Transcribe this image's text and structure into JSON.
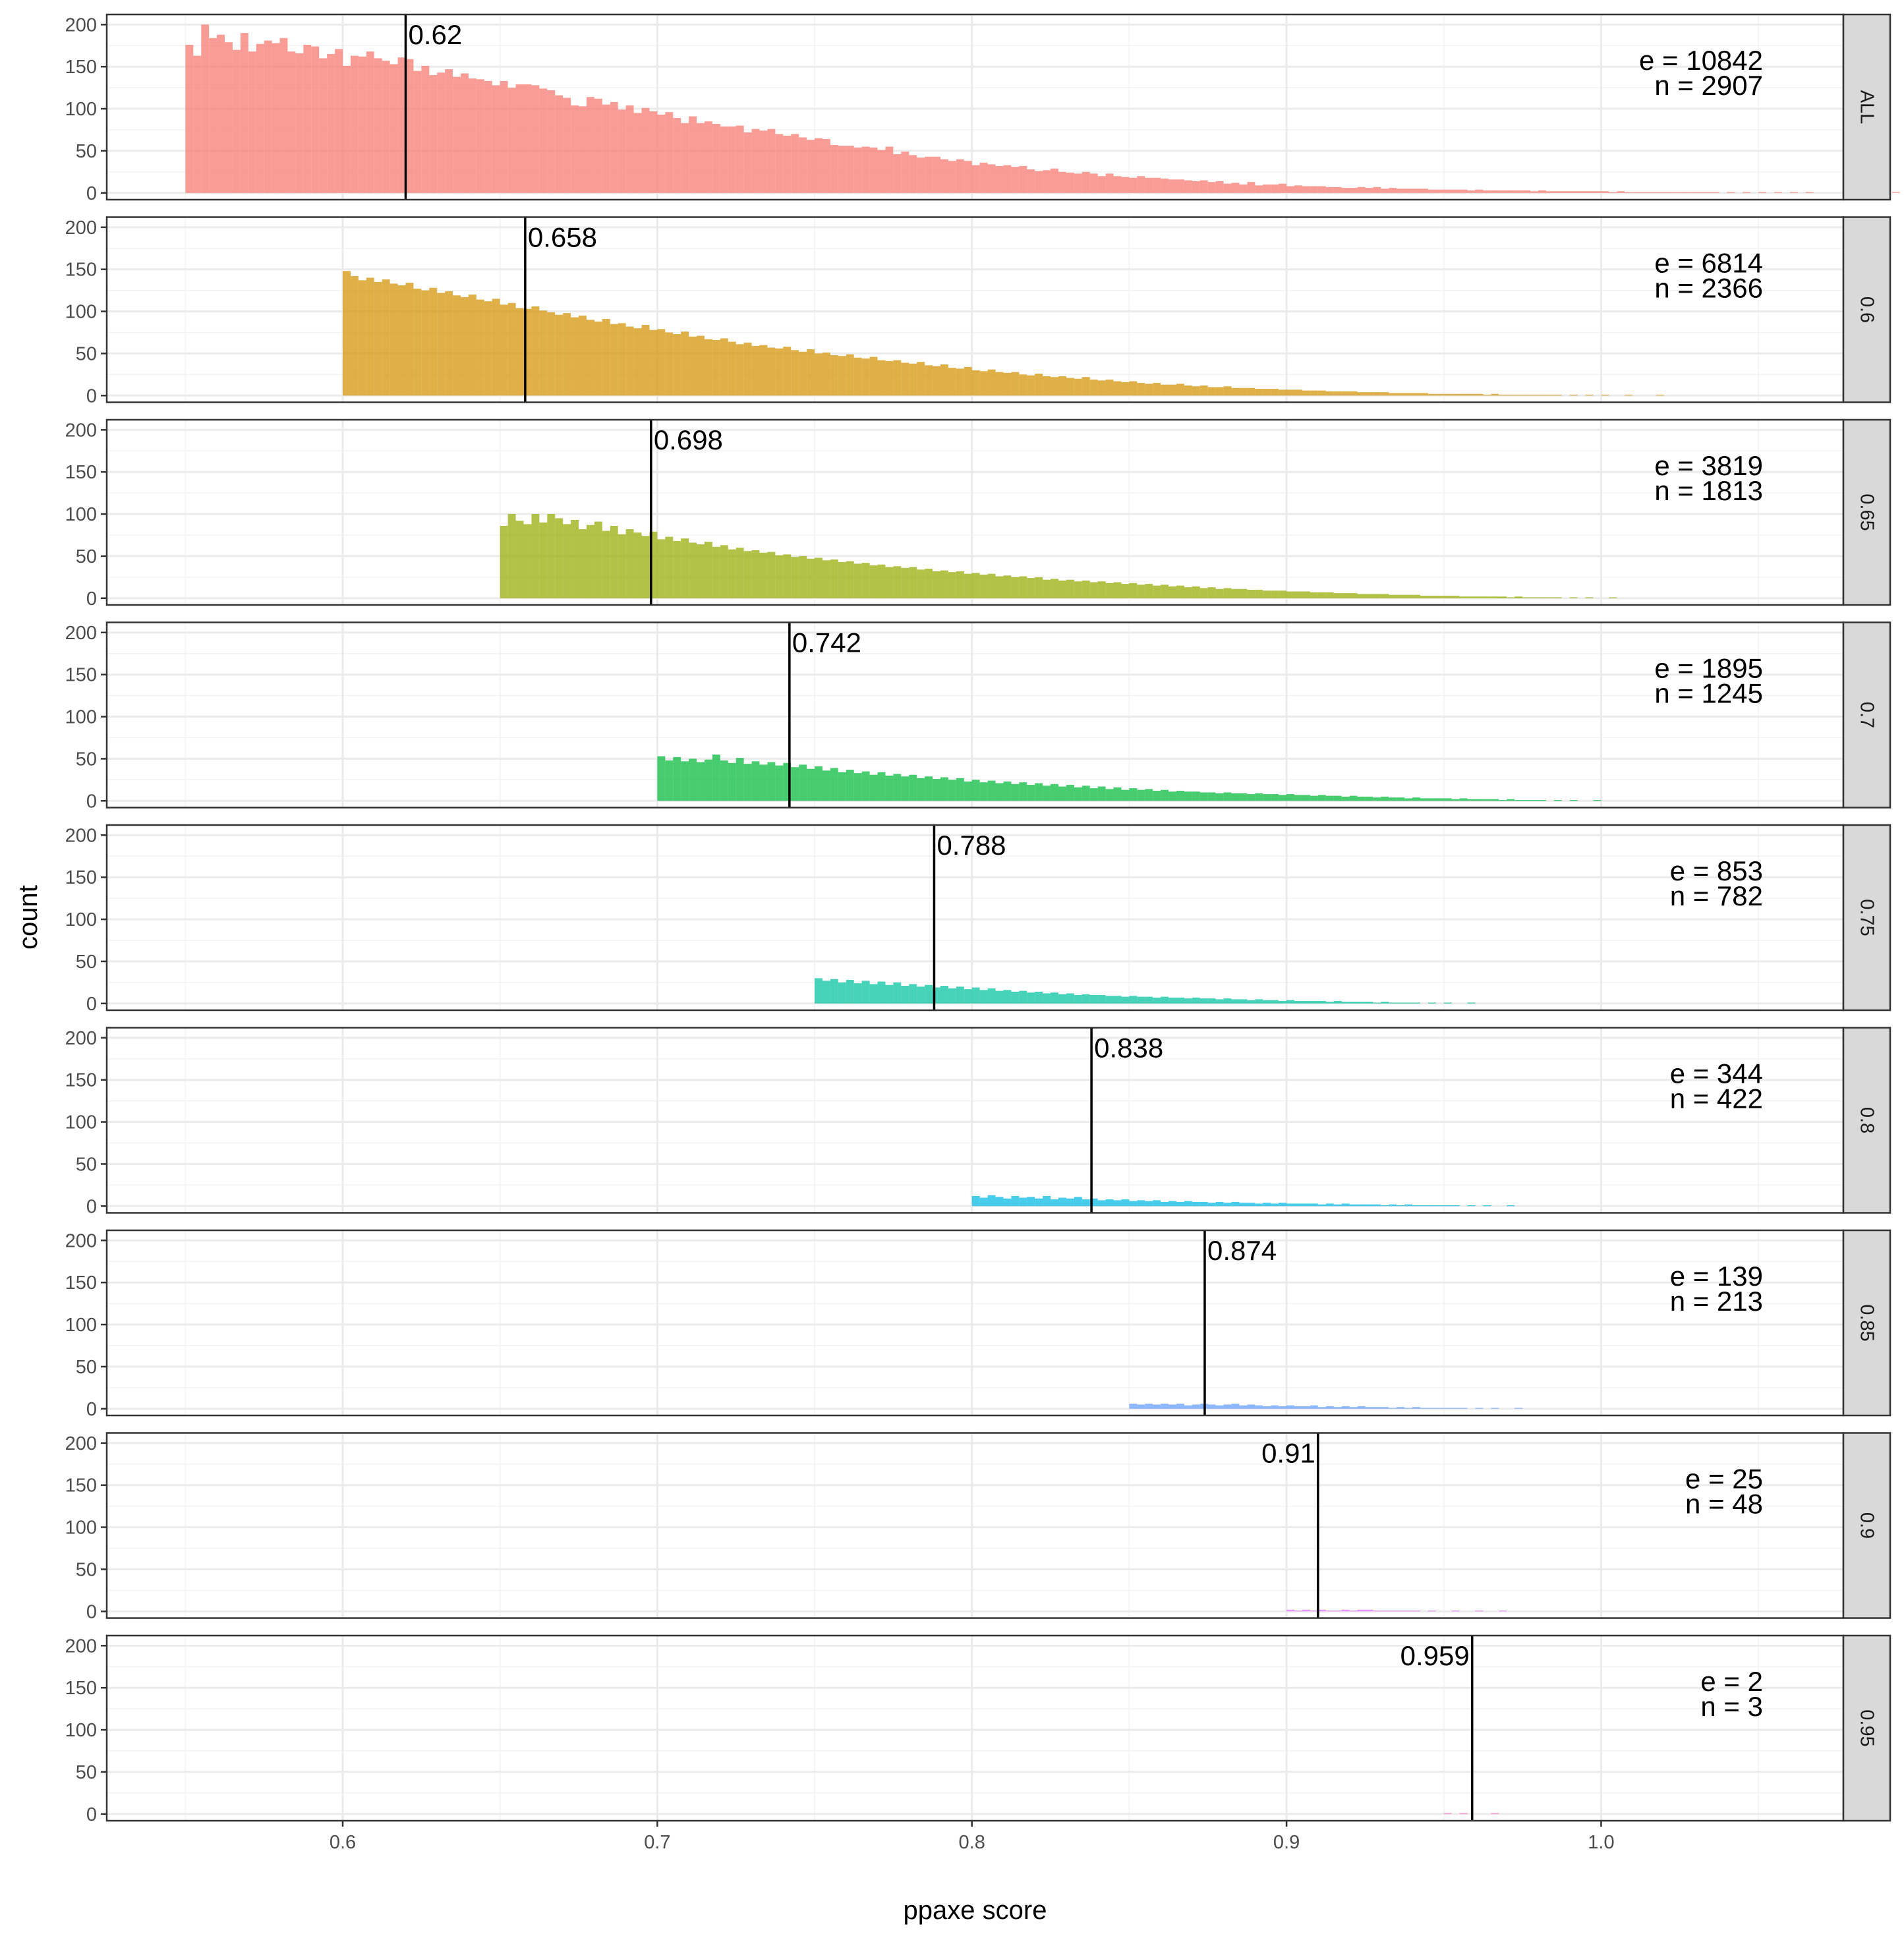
{
  "chart_data": {
    "type": "bar",
    "xlabel": "ppaxe score",
    "ylabel": "count",
    "xlim": [
      0.525,
      1.077
    ],
    "ylim": [
      -8,
      212
    ],
    "x_ticks": [
      "0.6",
      "0.7",
      "0.8",
      "0.9",
      "1.0"
    ],
    "x_tick_values": [
      0.6,
      0.7,
      0.8,
      0.9,
      1.0
    ],
    "y_ticks": [
      "0",
      "50",
      "100",
      "150",
      "200"
    ],
    "y_tick_values": [
      0,
      50,
      100,
      150,
      200
    ],
    "bin_width": 0.0025,
    "grid": true,
    "facet": "rows",
    "panels": [
      {
        "label": "ALL",
        "color": "#F8766D",
        "threshold": 0.55,
        "median": 0.62,
        "median_label": "0.62",
        "median_label_side": "right",
        "e_label": "e = 10842",
        "n_label": "n =  2907",
        "counts": [
          176,
          163,
          200,
          184,
          188,
          179,
          170,
          190,
          168,
          177,
          181,
          178,
          184,
          168,
          166,
          176,
          174,
          160,
          165,
          171,
          151,
          163,
          162,
          168,
          160,
          157,
          153,
          161,
          159,
          145,
          151,
          140,
          143,
          147,
          138,
          142,
          136,
          135,
          133,
          128,
          133,
          125,
          129,
          129,
          128,
          124,
          122,
          116,
          113,
          104,
          103,
          114,
          112,
          105,
          108,
          99,
          104,
          95,
          101,
          97,
          93,
          96,
          89,
          83,
          91,
          83,
          85,
          82,
          79,
          79,
          80,
          72,
          76,
          74,
          76,
          70,
          68,
          70,
          66,
          63,
          65,
          64,
          57,
          56,
          56,
          54,
          55,
          54,
          51,
          55,
          46,
          49,
          45,
          42,
          43,
          43,
          40,
          38,
          40,
          38,
          33,
          36,
          34,
          32,
          33,
          31,
          32,
          28,
          26,
          27,
          29,
          25,
          24,
          23,
          25,
          23,
          20,
          23,
          20,
          19,
          18,
          20,
          18,
          18,
          17,
          16,
          16,
          15,
          14,
          15,
          13,
          14,
          11,
          12,
          10,
          13,
          9,
          10,
          10,
          11,
          8,
          9,
          8,
          8,
          8,
          7,
          7,
          6,
          6,
          7,
          6,
          7,
          5,
          6,
          5,
          5,
          5,
          5,
          4,
          4,
          4,
          4,
          4,
          3,
          4,
          3,
          3,
          3,
          3,
          3,
          3,
          2,
          3,
          2,
          2,
          2,
          2,
          2,
          2,
          2,
          2,
          1,
          2,
          1,
          1,
          1,
          1,
          1,
          1,
          1,
          1,
          1,
          1,
          1,
          1,
          0,
          1,
          0,
          1,
          0,
          1,
          0,
          1,
          0,
          1,
          0,
          1,
          0,
          0,
          0,
          0,
          1,
          0,
          0,
          0,
          0,
          0,
          1
        ]
      },
      {
        "label": "0.6",
        "color": "#D39200",
        "threshold": 0.6,
        "median": 0.658,
        "median_label": "0.658",
        "median_label_side": "right",
        "e_label": "e = 6814",
        "n_label": "n =  2366",
        "counts": [
          148,
          142,
          137,
          140,
          135,
          138,
          133,
          131,
          134,
          127,
          125,
          128,
          122,
          124,
          119,
          117,
          120,
          114,
          112,
          115,
          108,
          110,
          104,
          103,
          106,
          101,
          99,
          96,
          98,
          93,
          95,
          90,
          88,
          91,
          85,
          86,
          82,
          80,
          84,
          78,
          79,
          75,
          73,
          76,
          70,
          71,
          67,
          66,
          68,
          64,
          61,
          63,
          59,
          60,
          57,
          56,
          58,
          54,
          52,
          55,
          50,
          51,
          48,
          47,
          49,
          45,
          44,
          46,
          42,
          41,
          42,
          39,
          38,
          40,
          36,
          35,
          37,
          33,
          32,
          34,
          30,
          29,
          31,
          28,
          27,
          28,
          25,
          24,
          26,
          23,
          22,
          23,
          21,
          20,
          22,
          19,
          18,
          19,
          17,
          16,
          17,
          15,
          14,
          15,
          13,
          13,
          14,
          12,
          11,
          12,
          10,
          10,
          11,
          9,
          9,
          9,
          8,
          8,
          8,
          7,
          7,
          7,
          6,
          6,
          6,
          5,
          5,
          5,
          5,
          4,
          4,
          4,
          4,
          3,
          3,
          3,
          3,
          3,
          2,
          2,
          2,
          2,
          2,
          2,
          2,
          1,
          2,
          1,
          1,
          1,
          1,
          1,
          1,
          1,
          1,
          0,
          1,
          0,
          1,
          0,
          1,
          0,
          0,
          1,
          0,
          0,
          0,
          1
        ]
      },
      {
        "label": "0.65",
        "color": "#93AA00",
        "threshold": 0.65,
        "median": 0.698,
        "median_label": "0.698",
        "median_label_side": "right",
        "e_label": "e = 3819",
        "n_label": "n =  1813",
        "counts": [
          86,
          100,
          92,
          88,
          100,
          90,
          100,
          95,
          88,
          93,
          82,
          87,
          91,
          80,
          86,
          76,
          82,
          78,
          74,
          79,
          70,
          73,
          68,
          71,
          66,
          64,
          67,
          61,
          63,
          58,
          60,
          56,
          57,
          54,
          55,
          51,
          52,
          49,
          50,
          47,
          48,
          45,
          46,
          43,
          44,
          41,
          42,
          39,
          40,
          37,
          38,
          36,
          37,
          34,
          35,
          32,
          33,
          31,
          32,
          29,
          30,
          28,
          29,
          26,
          27,
          25,
          26,
          24,
          25,
          22,
          23,
          21,
          22,
          20,
          21,
          19,
          20,
          18,
          19,
          17,
          18,
          16,
          17,
          15,
          16,
          14,
          15,
          13,
          14,
          12,
          13,
          11,
          12,
          11,
          11,
          10,
          10,
          9,
          9,
          9,
          8,
          8,
          8,
          7,
          7,
          7,
          6,
          6,
          6,
          5,
          5,
          5,
          5,
          4,
          4,
          4,
          4,
          3,
          3,
          3,
          3,
          3,
          2,
          2,
          2,
          2,
          2,
          2,
          1,
          2,
          1,
          1,
          1,
          1,
          1,
          0,
          1,
          0,
          1,
          0,
          0,
          1
        ]
      },
      {
        "label": "0.7",
        "color": "#00BA38",
        "threshold": 0.7,
        "median": 0.742,
        "median_label": "0.742",
        "median_label_side": "right",
        "e_label": "e = 1895",
        "n_label": "n =  1245",
        "counts": [
          53,
          48,
          52,
          47,
          50,
          46,
          49,
          55,
          48,
          45,
          51,
          44,
          47,
          43,
          46,
          42,
          45,
          40,
          43,
          38,
          41,
          36,
          39,
          34,
          37,
          33,
          35,
          31,
          34,
          30,
          32,
          29,
          31,
          27,
          29,
          26,
          28,
          25,
          27,
          23,
          25,
          22,
          24,
          21,
          23,
          20,
          22,
          19,
          21,
          18,
          20,
          17,
          19,
          16,
          18,
          15,
          17,
          14,
          16,
          13,
          15,
          13,
          14,
          12,
          13,
          11,
          12,
          11,
          11,
          10,
          10,
          9,
          10,
          9,
          9,
          8,
          9,
          8,
          8,
          7,
          8,
          7,
          7,
          6,
          7,
          6,
          6,
          5,
          6,
          5,
          5,
          4,
          5,
          4,
          4,
          3,
          4,
          3,
          3,
          3,
          3,
          2,
          3,
          2,
          2,
          2,
          2,
          1,
          2,
          1,
          1,
          1,
          1,
          0,
          1,
          0,
          1,
          0,
          0,
          1
        ]
      },
      {
        "label": "0.75",
        "color": "#00C19F",
        "threshold": 0.75,
        "median": 0.788,
        "median_label": "0.788",
        "median_label_side": "right",
        "e_label": "e = 853",
        "n_label": "n =  782",
        "counts": [
          30,
          27,
          29,
          25,
          28,
          24,
          27,
          23,
          26,
          22,
          25,
          21,
          23,
          20,
          22,
          19,
          21,
          18,
          20,
          17,
          19,
          16,
          18,
          15,
          16,
          14,
          15,
          13,
          14,
          12,
          13,
          11,
          12,
          10,
          11,
          10,
          10,
          9,
          9,
          8,
          9,
          8,
          8,
          7,
          8,
          7,
          7,
          6,
          7,
          6,
          6,
          5,
          6,
          5,
          5,
          4,
          5,
          4,
          4,
          3,
          4,
          3,
          3,
          3,
          3,
          2,
          3,
          2,
          2,
          2,
          2,
          1,
          2,
          1,
          1,
          1,
          1,
          0,
          1,
          0,
          1,
          0,
          0,
          1
        ]
      },
      {
        "label": "0.8",
        "color": "#00B9E3",
        "threshold": 0.8,
        "median": 0.838,
        "median_label": "0.838",
        "median_label_side": "right",
        "e_label": "e = 344",
        "n_label": "n =  422",
        "counts": [
          12,
          10,
          13,
          11,
          9,
          12,
          10,
          11,
          9,
          12,
          8,
          10,
          9,
          11,
          8,
          9,
          7,
          8,
          7,
          8,
          6,
          7,
          6,
          7,
          5,
          6,
          5,
          6,
          5,
          5,
          4,
          5,
          4,
          5,
          4,
          4,
          3,
          4,
          3,
          4,
          3,
          3,
          3,
          3,
          2,
          3,
          2,
          3,
          2,
          2,
          2,
          2,
          1,
          2,
          1,
          2,
          1,
          1,
          1,
          1,
          1,
          1,
          0,
          1,
          0,
          1,
          0,
          0,
          1
        ]
      },
      {
        "label": "0.85",
        "color": "#619CFF",
        "threshold": 0.85,
        "median": 0.874,
        "median_label": "0.874",
        "median_label_side": "right",
        "e_label": "e = 139",
        "n_label": "n =  213",
        "counts": [
          6,
          5,
          6,
          5,
          6,
          5,
          6,
          4,
          5,
          6,
          5,
          4,
          5,
          6,
          4,
          5,
          4,
          3,
          4,
          3,
          4,
          3,
          3,
          4,
          2,
          3,
          2,
          3,
          2,
          3,
          2,
          2,
          2,
          1,
          2,
          1,
          2,
          1,
          1,
          1,
          1,
          1,
          1,
          0,
          1,
          0,
          1,
          0,
          0,
          1
        ]
      },
      {
        "label": "0.9",
        "color": "#DB72FB",
        "threshold": 0.9,
        "median": 0.91,
        "median_label": "0.91",
        "median_label_side": "left",
        "e_label": "e = 25",
        "n_label": "n =  48",
        "counts": [
          2,
          1,
          2,
          1,
          2,
          1,
          1,
          2,
          1,
          2,
          2,
          1,
          1,
          1,
          1,
          1,
          1,
          0,
          1,
          0,
          0,
          1,
          0,
          0,
          1,
          0,
          0,
          1
        ]
      },
      {
        "label": "0.95",
        "color": "#FF61C3",
        "threshold": 0.95,
        "median": 0.959,
        "median_label": "0.959",
        "median_label_side": "left",
        "e_label": "e = 2",
        "n_label": "n =  3",
        "counts": [
          1,
          0,
          1,
          0,
          0,
          0,
          1
        ]
      }
    ]
  }
}
